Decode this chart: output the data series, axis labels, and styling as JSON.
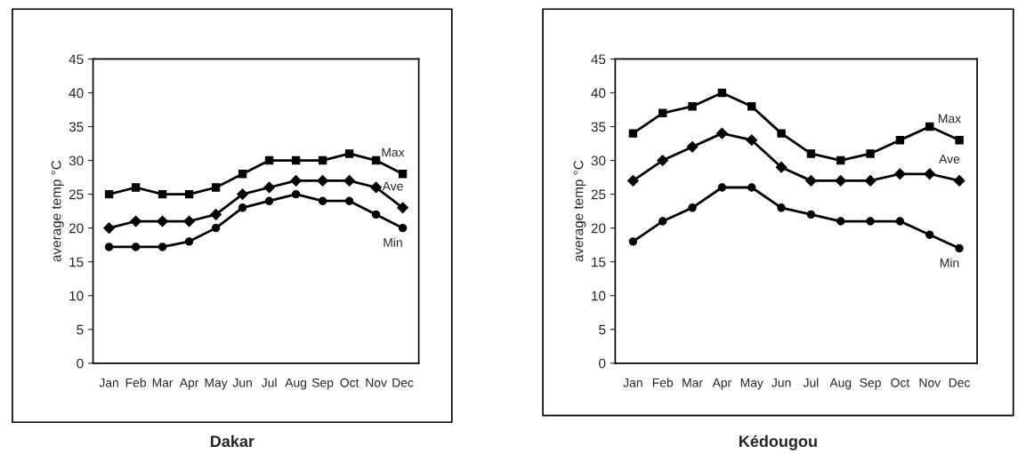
{
  "chart_data": [
    {
      "type": "line",
      "title": "Dakar",
      "ylabel": "average temp °C",
      "categories": [
        "Jan",
        "Feb",
        "Mar",
        "Apr",
        "May",
        "Jun",
        "Jul",
        "Aug",
        "Sep",
        "Oct",
        "Nov",
        "Dec"
      ],
      "ylim": [
        0,
        45
      ],
      "yticks": [
        0,
        5,
        10,
        15,
        20,
        25,
        30,
        35,
        40,
        45
      ],
      "grid": false,
      "legend": false,
      "series": [
        {
          "name": "Max",
          "color": "#000000",
          "marker": "square",
          "values": [
            25,
            26,
            25,
            25,
            26,
            28,
            30,
            30,
            30,
            31,
            30,
            28
          ]
        },
        {
          "name": "Ave",
          "color": "#000000",
          "marker": "diamond",
          "values": [
            20,
            21,
            21,
            21,
            22,
            25,
            26,
            27,
            27,
            27,
            26,
            23
          ]
        },
        {
          "name": "Min",
          "color": "#000000",
          "marker": "circle",
          "values": [
            17.2,
            17.2,
            17.2,
            18,
            20,
            23,
            24,
            25,
            24,
            24,
            22,
            20
          ]
        }
      ]
    },
    {
      "type": "line",
      "title": "Kédougou",
      "ylabel": "average temp °C",
      "categories": [
        "Jan",
        "Feb",
        "Mar",
        "Apr",
        "May",
        "Jun",
        "Jul",
        "Aug",
        "Sep",
        "Oct",
        "Nov",
        "Dec"
      ],
      "ylim": [
        0,
        45
      ],
      "yticks": [
        0,
        5,
        10,
        15,
        20,
        25,
        30,
        35,
        40,
        45
      ],
      "grid": false,
      "legend": false,
      "series": [
        {
          "name": "Max",
          "color": "#000000",
          "marker": "square",
          "values": [
            34,
            37,
            38,
            40,
            38,
            34,
            31,
            30,
            31,
            33,
            35,
            33
          ]
        },
        {
          "name": "Ave",
          "color": "#000000",
          "marker": "diamond",
          "values": [
            27,
            30,
            32,
            34,
            33,
            29,
            27,
            27,
            27,
            28,
            28,
            27
          ]
        },
        {
          "name": "Min",
          "color": "#000000",
          "marker": "circle",
          "values": [
            18,
            21,
            23,
            26,
            26,
            23,
            22,
            21,
            21,
            21,
            19,
            17
          ]
        }
      ]
    }
  ]
}
